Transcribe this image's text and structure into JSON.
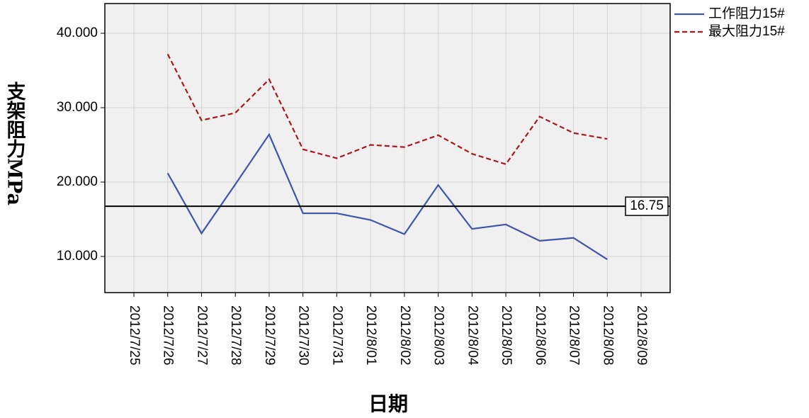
{
  "chart_data": {
    "type": "line",
    "x_label": "日期",
    "y_label": "支架阻力MPa",
    "categories": [
      "2012/7/25",
      "2012/7/26",
      "2012/7/27",
      "2012/7/28",
      "2012/7/29",
      "2012/7/30",
      "2012/7/31",
      "2012/8/01",
      "2012/8/02",
      "2012/8/03",
      "2012/8/04",
      "2012/8/05",
      "2012/8/06",
      "2012/8/07",
      "2012/8/08",
      "2012/8/09"
    ],
    "series": [
      {
        "name": "工作阻力15#",
        "color": "#3f55a6",
        "dash": false,
        "values": [
          null,
          21.2,
          13.1,
          19.7,
          26.4,
          15.8,
          15.8,
          14.9,
          13.0,
          19.6,
          13.7,
          14.3,
          12.1,
          12.5,
          9.6,
          null
        ]
      },
      {
        "name": "最大阻力15#",
        "color": "#a8191e",
        "dash": true,
        "values": [
          null,
          37.2,
          28.3,
          29.3,
          33.8,
          24.4,
          23.2,
          25.0,
          24.7,
          26.3,
          23.8,
          22.4,
          28.8,
          26.6,
          25.8,
          null
        ]
      }
    ],
    "reference_line": {
      "value": 16.75
    },
    "ylim": [
      5.14,
      44.0
    ],
    "yticks": [
      {
        "value": 10,
        "label": "10.000"
      },
      {
        "value": 20,
        "label": "20.000"
      },
      {
        "value": 30,
        "label": "30.000"
      },
      {
        "value": 40,
        "label": "40.000"
      }
    ],
    "grid": true,
    "legend": "top-right outside"
  }
}
